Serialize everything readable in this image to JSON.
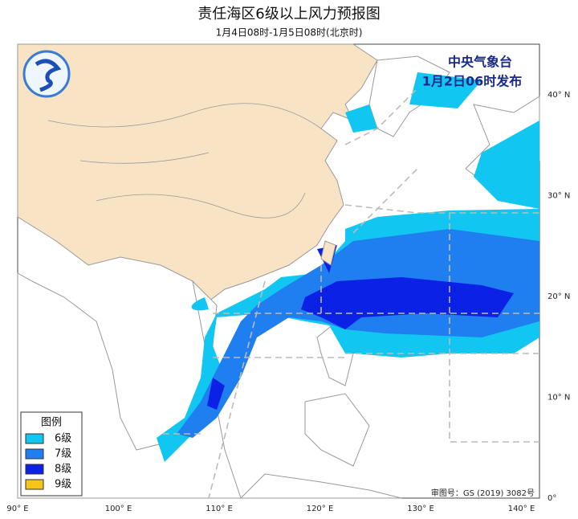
{
  "header": {
    "title": "责任海区6级以上风力预报图",
    "subtitle": "1月4日08时-1月5日08时(北京时)"
  },
  "issuer": {
    "name": "中央气象台",
    "time": "1月2日06时发布"
  },
  "legend": {
    "title": "图例",
    "items": [
      {
        "label": "6级",
        "color": "#12c6f2"
      },
      {
        "label": "7级",
        "color": "#1f7ef0"
      },
      {
        "label": "8级",
        "color": "#0b22e6"
      },
      {
        "label": "9级",
        "color": "#f5c518"
      }
    ]
  },
  "axes": {
    "lon_labels": [
      "90° E",
      "100° E",
      "110° E",
      "120° E",
      "130° E",
      "140° E"
    ],
    "lat_labels": [
      "40° N",
      "30° N",
      "20° N",
      "10° N",
      "0°"
    ]
  },
  "footer": {
    "approval": "审图号：GS (2019) 3082号"
  }
}
